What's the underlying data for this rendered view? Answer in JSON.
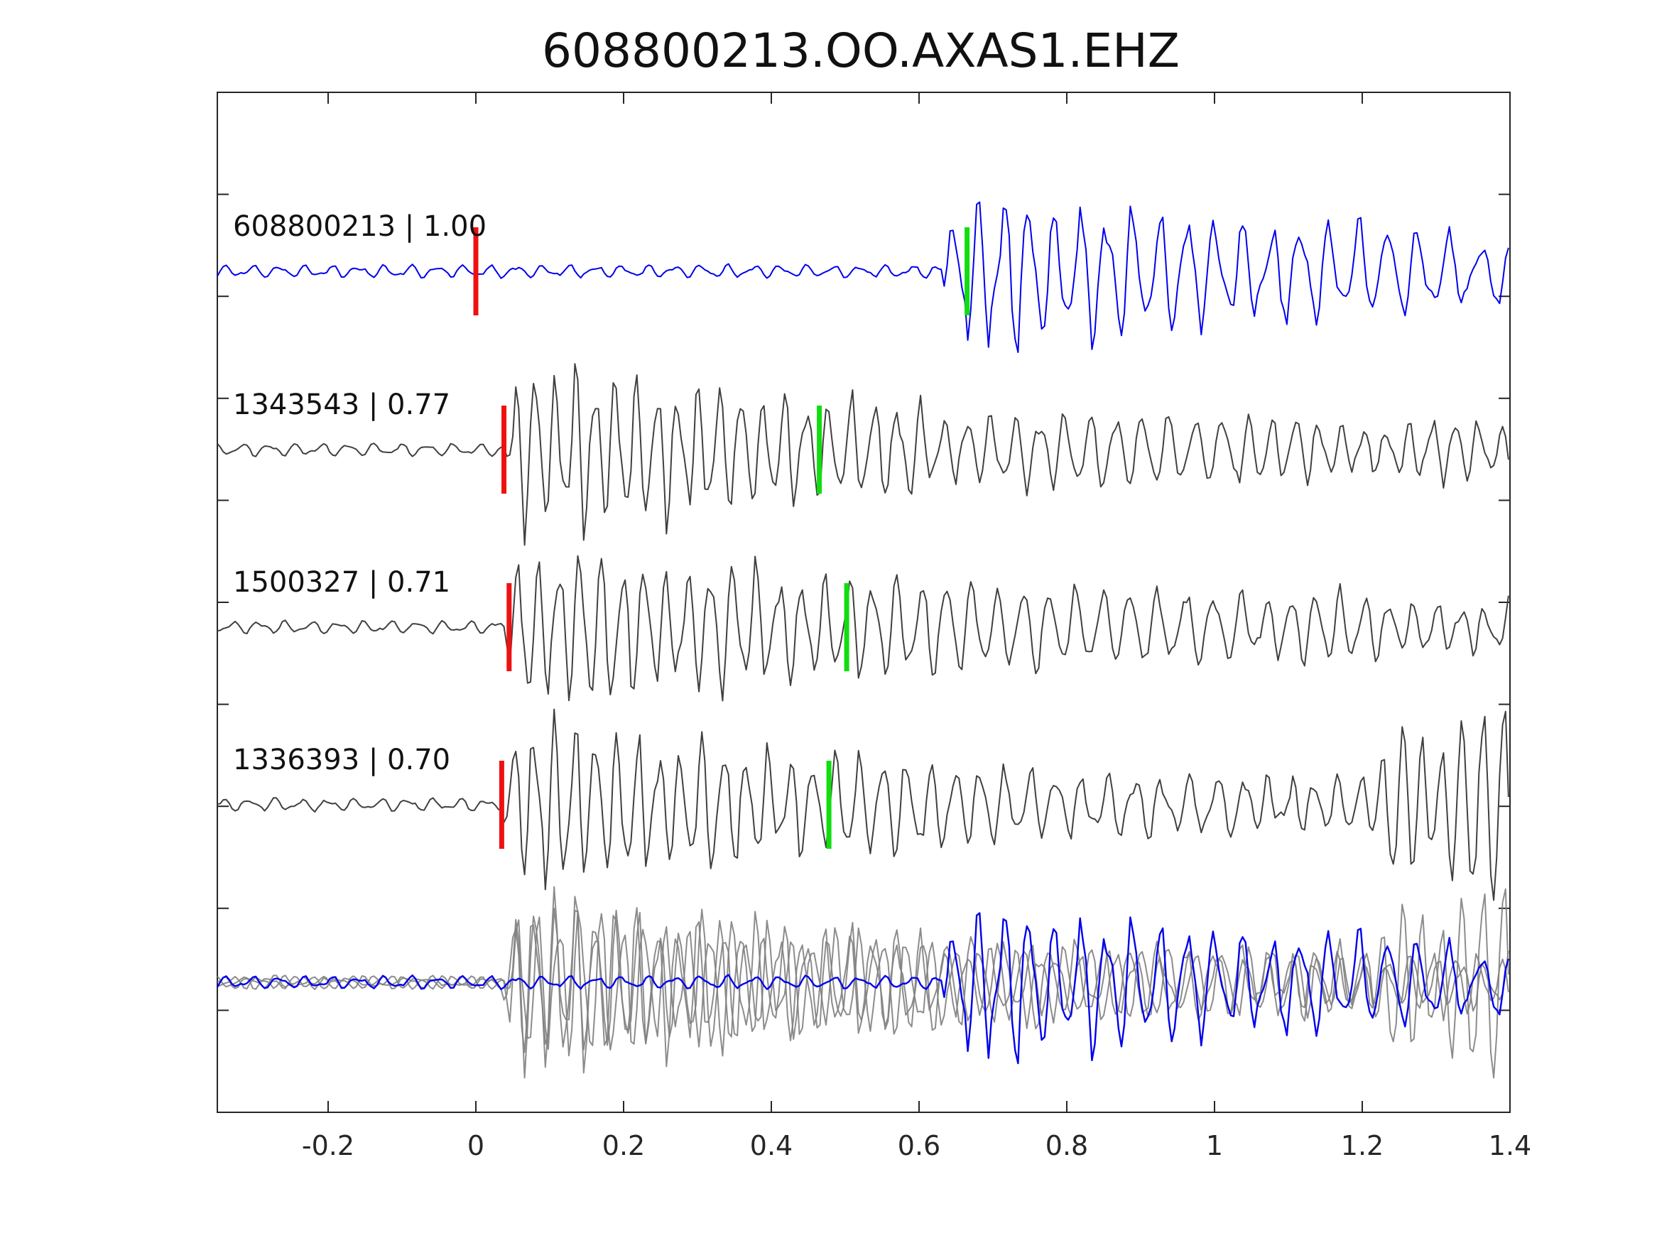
{
  "chart_data": {
    "type": "line",
    "title": "608800213.OO.AXAS1.EHZ",
    "xlabel": "",
    "ylabel": "",
    "xlim": [
      -0.35,
      1.4
    ],
    "x_ticks": [
      -0.2,
      0,
      0.2,
      0.4,
      0.6,
      0.8,
      1,
      1.2,
      1.4
    ],
    "x_tick_labels": [
      "-0.2",
      "0",
      "0.2",
      "0.4",
      "0.6",
      "0.8",
      "1",
      "1.2",
      "1.4"
    ],
    "y_ticks_count": 11,
    "grid": false,
    "colors": {
      "reference": "#0000ee",
      "match": "#404040",
      "overlay_match": "#808080",
      "p_pick": "#ee1111",
      "s_pick": "#11dd11",
      "axes": "#262626"
    },
    "series": [
      {
        "label": "608800213 | 1.00",
        "color": "#0000ee",
        "onset": 0.63,
        "duration": 0.77,
        "dominant_freq": 30,
        "peak_amplitude": 1.0,
        "p_pick": 0.0,
        "s_pick": 0.665
      },
      {
        "label": "1343543 | 0.77",
        "color": "#404040",
        "onset": 0.04,
        "duration": 1.36,
        "dominant_freq": 38,
        "peak_amplitude": 1.0,
        "p_pick": 0.038,
        "s_pick": 0.465
      },
      {
        "label": "1500327 | 0.71",
        "color": "#404040",
        "onset": 0.04,
        "duration": 1.36,
        "dominant_freq": 36,
        "peak_amplitude": 1.0,
        "p_pick": 0.045,
        "s_pick": 0.502
      },
      {
        "label": "1336393 | 0.70",
        "color": "#404040",
        "onset": 0.035,
        "duration": 1.36,
        "dominant_freq": 37,
        "peak_amplitude": 1.0,
        "p_pick": 0.035,
        "s_pick": 0.478,
        "second_onset": 1.22
      }
    ]
  }
}
